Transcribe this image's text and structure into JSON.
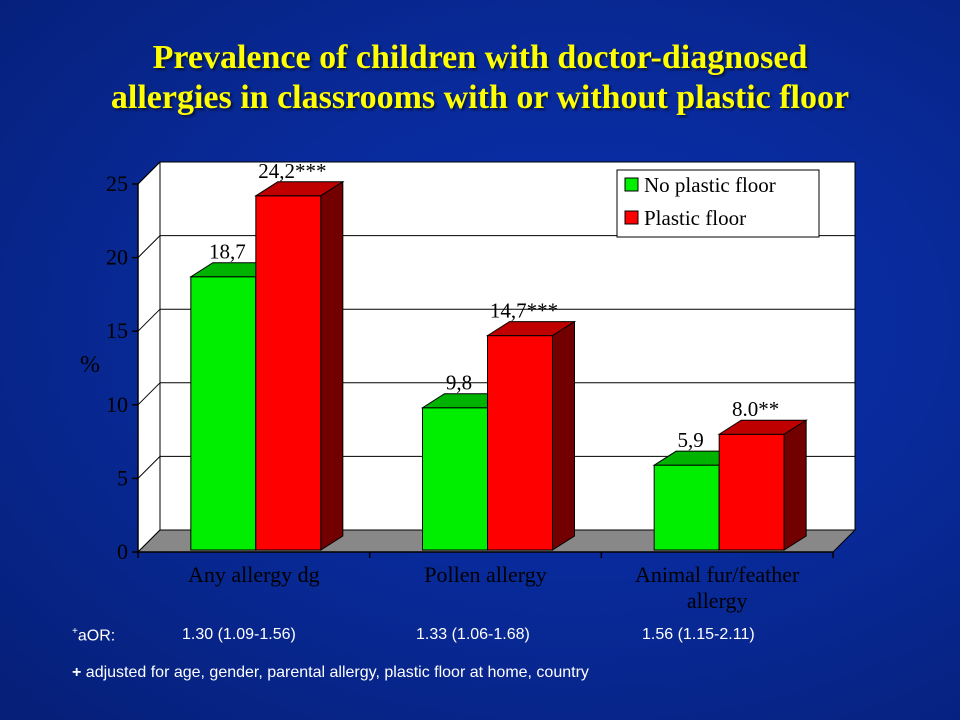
{
  "title": {
    "line1": "Prevalence of children with doctor-diagnosed",
    "line2": "allergies in classrooms with or without plastic floor"
  },
  "colors": {
    "background": "#082a9a",
    "title": "#ffff00",
    "no_plastic": "#00ee00",
    "plastic": "#ff0000",
    "plot_area": "#ffffff",
    "floor": "#888888"
  },
  "chart_data": {
    "type": "bar",
    "categories": [
      "Any allergy dg",
      "Pollen allergy",
      "Animal fur/feather allergy"
    ],
    "category_lines": [
      [
        "Any allergy dg"
      ],
      [
        "Pollen allergy"
      ],
      [
        "Animal fur/feather",
        "allergy"
      ]
    ],
    "series": [
      {
        "name": "No plastic floor",
        "values": [
          18.7,
          9.8,
          5.9
        ],
        "labels": [
          "18,7",
          "9,8",
          "5,9"
        ],
        "color": "#00ee00"
      },
      {
        "name": "Plastic floor",
        "values": [
          24.2,
          14.7,
          8.0
        ],
        "labels": [
          "24,2***",
          "14,7***",
          "8.0**"
        ],
        "color": "#ff0000"
      }
    ],
    "xlabel": "",
    "ylabel": "%",
    "ylim": [
      0,
      25
    ],
    "yticks": [
      0,
      5,
      10,
      15,
      20,
      25
    ],
    "grid": true,
    "legend_position": "top-right"
  },
  "footnotes": {
    "aor_sup": "+",
    "aor_label": "aOR:",
    "aor_values": [
      "1.30 (1.09-1.56)",
      "1.33 (1.06-1.68)",
      "1.56 (1.15-2.11)"
    ],
    "adjusted_plus": "+",
    "adjusted_text": " adjusted for age, gender, parental allergy, plastic floor at home, country"
  }
}
